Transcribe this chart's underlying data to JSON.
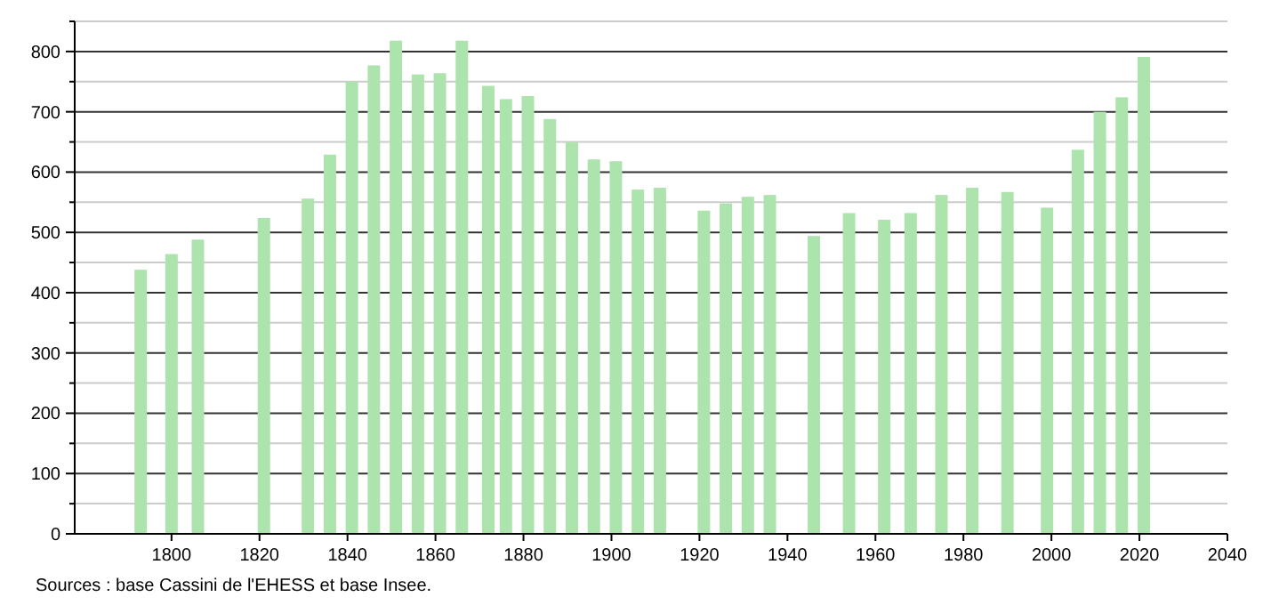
{
  "chart_data": {
    "type": "bar",
    "x": [
      1793,
      1800,
      1806,
      1821,
      1831,
      1836,
      1841,
      1846,
      1851,
      1856,
      1861,
      1866,
      1872,
      1876,
      1881,
      1886,
      1891,
      1896,
      1901,
      1906,
      1911,
      1921,
      1926,
      1931,
      1936,
      1946,
      1954,
      1962,
      1968,
      1975,
      1982,
      1990,
      1999,
      2006,
      2011,
      2016,
      2021
    ],
    "values": [
      438,
      464,
      488,
      524,
      556,
      629,
      750,
      777,
      818,
      762,
      764,
      818,
      743,
      721,
      726,
      688,
      649,
      621,
      618,
      571,
      574,
      536,
      548,
      559,
      562,
      494,
      532,
      521,
      532,
      562,
      574,
      567,
      541,
      637,
      700,
      724,
      791
    ],
    "color": "#ade3ad",
    "xlim": [
      1778,
      2040
    ],
    "xticks": [
      1800,
      1820,
      1840,
      1860,
      1880,
      1900,
      1920,
      1940,
      1960,
      1980,
      2000,
      2020,
      2040
    ],
    "ylim": [
      0,
      850
    ],
    "yticks": [
      0,
      {
        "value": 50,
        "label": null
      },
      100,
      {
        "value": 150,
        "label": null
      },
      200,
      {
        "value": 250,
        "label": null
      },
      300,
      {
        "value": 350,
        "label": null
      },
      400,
      {
        "value": 450,
        "label": null
      },
      500,
      {
        "value": 550,
        "label": null
      },
      600,
      {
        "value": 650,
        "label": null
      },
      700,
      {
        "value": 750,
        "label": null
      },
      800,
      {
        "value": 850,
        "label": null
      }
    ],
    "grid": true,
    "annotations": [
      "Sources : base Cassini de l'EHESS et base Insee."
    ]
  }
}
